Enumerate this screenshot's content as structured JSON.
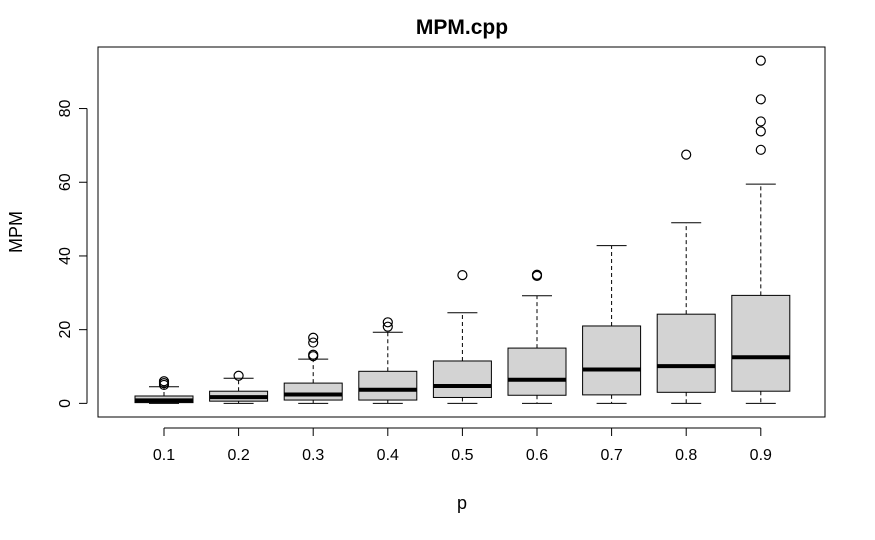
{
  "chart_data": {
    "type": "box",
    "title": "MPM.cpp",
    "xlabel": "p",
    "ylabel": "MPM",
    "categories": [
      "0.1",
      "0.2",
      "0.3",
      "0.4",
      "0.5",
      "0.6",
      "0.7",
      "0.8",
      "0.9"
    ],
    "yticks": [
      0,
      20,
      40,
      60,
      80
    ],
    "ylim": [
      -3.7,
      96.7
    ],
    "grid": false,
    "box_fill": "#d3d3d3",
    "line_color": "#000000",
    "boxes": [
      {
        "category": "0.1",
        "whisker_low": 0.0,
        "q1": 0.2,
        "median": 0.8,
        "q3": 2.0,
        "whisker_high": 4.5,
        "outliers": [
          5.0,
          5.5,
          6.0
        ]
      },
      {
        "category": "0.2",
        "whisker_low": 0.0,
        "q1": 0.6,
        "median": 1.7,
        "q3": 3.3,
        "whisker_high": 6.8,
        "outliers": [
          7.5
        ]
      },
      {
        "category": "0.3",
        "whisker_low": 0.0,
        "q1": 0.9,
        "median": 2.4,
        "q3": 5.5,
        "whisker_high": 12.0,
        "outliers": [
          12.8,
          13.2,
          16.5,
          17.8
        ]
      },
      {
        "category": "0.4",
        "whisker_low": 0.0,
        "q1": 0.9,
        "median": 3.7,
        "q3": 8.7,
        "whisker_high": 19.3,
        "outliers": [
          20.8,
          22.0
        ]
      },
      {
        "category": "0.5",
        "whisker_low": 0.0,
        "q1": 1.6,
        "median": 4.7,
        "q3": 11.5,
        "whisker_high": 24.6,
        "outliers": [
          34.8
        ]
      },
      {
        "category": "0.6",
        "whisker_low": 0.0,
        "q1": 2.2,
        "median": 6.4,
        "q3": 15.0,
        "whisker_high": 29.2,
        "outliers": [
          34.6,
          34.9
        ]
      },
      {
        "category": "0.7",
        "whisker_low": 0.0,
        "q1": 2.3,
        "median": 9.2,
        "q3": 21.0,
        "whisker_high": 42.8,
        "outliers": []
      },
      {
        "category": "0.8",
        "whisker_low": 0.0,
        "q1": 3.0,
        "median": 10.1,
        "q3": 24.2,
        "whisker_high": 49.0,
        "outliers": [
          67.5
        ]
      },
      {
        "category": "0.9",
        "whisker_low": 0.0,
        "q1": 3.3,
        "median": 12.5,
        "q3": 29.3,
        "whisker_high": 59.5,
        "outliers": [
          68.8,
          73.8,
          76.5,
          82.5,
          93.0
        ]
      }
    ]
  }
}
